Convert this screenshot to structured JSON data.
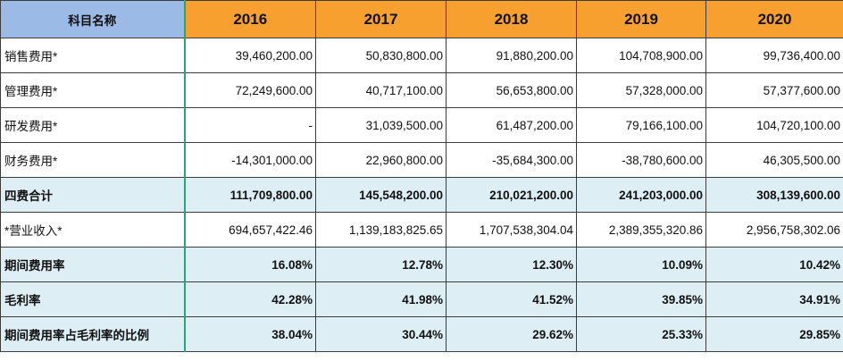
{
  "table": {
    "header": {
      "label": "科目名称",
      "years": [
        "2016",
        "2017",
        "2018",
        "2019",
        "2020"
      ]
    },
    "rows": [
      {
        "label": "销售费用*",
        "values": [
          "39,460,200.00",
          "50,830,800.00",
          "91,880,200.00",
          "104,708,900.00",
          "99,736,400.00"
        ]
      },
      {
        "label": "管理费用*",
        "values": [
          "72,249,600.00",
          "40,717,100.00",
          "56,653,800.00",
          "57,328,000.00",
          "57,377,600.00"
        ]
      },
      {
        "label": "研发费用*",
        "values": [
          "-",
          "31,039,500.00",
          "61,487,200.00",
          "79,166,100.00",
          "104,720,100.00"
        ]
      },
      {
        "label": "财务费用*",
        "values": [
          "-14,301,000.00",
          "22,960,800.00",
          "-35,684,300.00",
          "-38,780,600.00",
          "46,305,500.00"
        ]
      },
      {
        "label": "四费合计",
        "values": [
          "111,709,800.00",
          "145,548,200.00",
          "210,021,200.00",
          "241,203,000.00",
          "308,139,600.00"
        ]
      },
      {
        "label": "*营业收入*",
        "values": [
          "694,657,422.46",
          "1,139,183,825.65",
          "1,707,538,304.04",
          "2,389,355,320.86",
          "2,956,758,302.06"
        ]
      },
      {
        "label": "期间费用率",
        "values": [
          "16.08%",
          "12.78%",
          "12.30%",
          "10.09%",
          "10.42%"
        ]
      },
      {
        "label": "毛利率",
        "values": [
          "42.28%",
          "41.98%",
          "41.52%",
          "39.85%",
          "34.91%"
        ]
      },
      {
        "label": "期间费用率占毛利率的比例",
        "values": [
          "38.04%",
          "30.44%",
          "29.62%",
          "25.33%",
          "29.85%"
        ]
      }
    ]
  },
  "colors": {
    "header_label_bg": "#9bbbe6",
    "header_year_bg": "#f7a030",
    "shaded_row_bg": "#ddeef5",
    "freeze_line": "#22a878",
    "comment_marker": "#c0392b"
  }
}
